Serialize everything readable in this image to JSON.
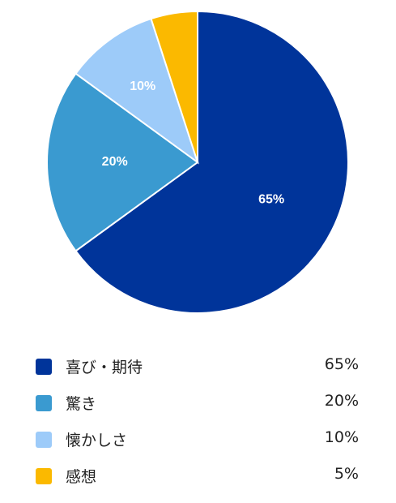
{
  "chart_data": {
    "type": "pie",
    "categories": [
      "喜び・期待",
      "驚き",
      "懐かしさ",
      "感想"
    ],
    "values": [
      65,
      20,
      10,
      5
    ],
    "unit": "%",
    "colors": [
      "#00349a",
      "#3a9ad0",
      "#9dcbf9",
      "#fbb900"
    ],
    "slice_labels": [
      "65%",
      "20%",
      "10%",
      ""
    ],
    "legend_values": [
      "65%",
      "20%",
      "10%",
      "5%"
    ],
    "legend_placement": "bottom",
    "start": "12 o'clock, clockwise"
  }
}
